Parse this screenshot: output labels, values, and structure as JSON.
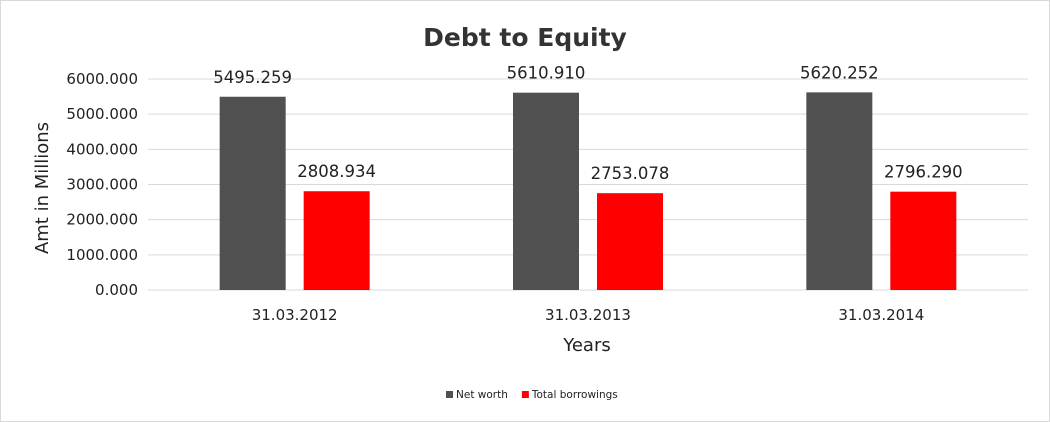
{
  "chart_data": {
    "type": "bar",
    "title": "Debt to Equity",
    "xlabel": "Years",
    "ylabel": "Amt in Millions",
    "categories": [
      "31.03.2012",
      "31.03.2013",
      "31.03.2014"
    ],
    "series": [
      {
        "name": "Net worth",
        "color": "#505050",
        "values": [
          5495.259,
          5610.91,
          5620.252
        ],
        "labels": [
          "5495.259",
          "5610.910",
          "5620.252"
        ]
      },
      {
        "name": "Total borrowings",
        "color": "#ff0000",
        "values": [
          2808.934,
          2753.078,
          2796.29
        ],
        "labels": [
          "2808.934",
          "2753.078",
          "2796.290"
        ]
      }
    ],
    "ylim": [
      0,
      6000
    ],
    "yticks": [
      "0.000",
      "1000.000",
      "2000.000",
      "3000.000",
      "4000.000",
      "5000.000",
      "6000.000"
    ],
    "ytick_values": [
      0,
      1000,
      2000,
      3000,
      4000,
      5000,
      6000
    ],
    "grid": true,
    "legend_position": "bottom"
  }
}
